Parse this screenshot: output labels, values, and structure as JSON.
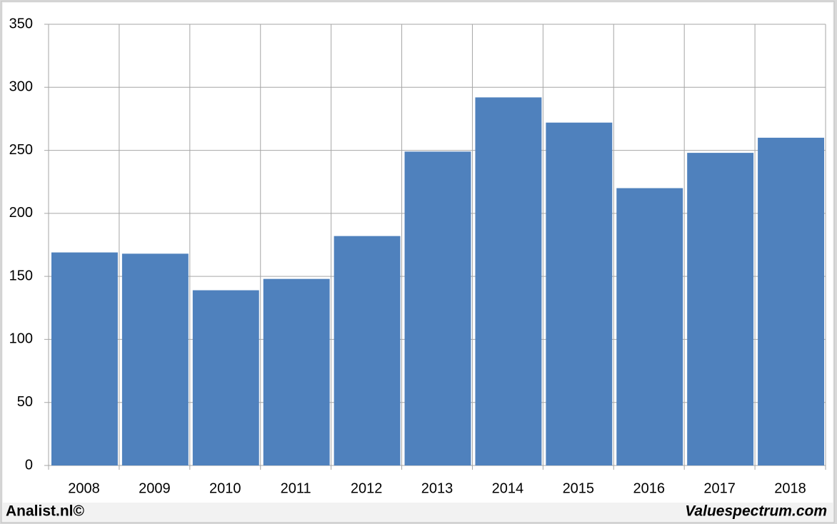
{
  "chart_data": {
    "type": "bar",
    "categories": [
      "2008",
      "2009",
      "2010",
      "2011",
      "2012",
      "2013",
      "2014",
      "2015",
      "2016",
      "2017",
      "2018"
    ],
    "values": [
      169,
      168,
      139,
      148,
      182,
      249,
      292,
      272,
      220,
      248,
      260
    ],
    "color": "#4f81bd",
    "ylim": [
      0,
      350
    ],
    "yticks": [
      0,
      50,
      100,
      150,
      200,
      250,
      300,
      350
    ],
    "grid": true
  },
  "footer": {
    "left": "Analist.nl©",
    "right": "Valuespectrum.com"
  }
}
